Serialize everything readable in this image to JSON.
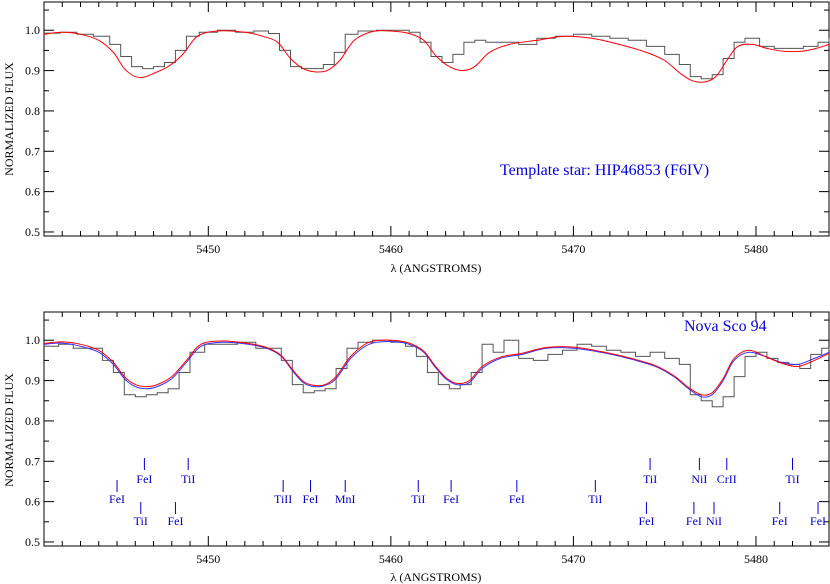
{
  "chart_data": [
    {
      "type": "line",
      "annotation": "Template star:  HIP46853 (F6IV)",
      "xlabel": "λ  (ANGSTROMS)",
      "ylabel": "NORMALIZED FLUX",
      "xlim": [
        5441,
        5484
      ],
      "ylim": [
        0.49,
        1.07
      ],
      "xticks": [
        5450,
        5460,
        5470,
        5480
      ],
      "yticks": [
        0.5,
        0.6,
        0.7,
        0.8,
        0.9,
        1.0
      ],
      "yticklabels": [
        "0.5",
        "0.6",
        "0.7",
        "0.8",
        "0.9",
        "1.0"
      ],
      "series": [
        {
          "style": "step",
          "color": "#555555",
          "x": [
            5441.0,
            5441.9,
            5442.8,
            5443.7,
            5444.6,
            5445.2,
            5445.8,
            5446.4,
            5447.0,
            5447.6,
            5448.2,
            5448.8,
            5449.5,
            5450.5,
            5451.5,
            5452.5,
            5453.3,
            5453.9,
            5454.5,
            5455.1,
            5455.7,
            5456.3,
            5456.9,
            5457.5,
            5458.2,
            5459.2,
            5460.2,
            5461.0,
            5461.6,
            5462.2,
            5462.8,
            5463.4,
            5464.0,
            5464.6,
            5465.2,
            5466.0,
            5467.0,
            5468.0,
            5469.0,
            5470.0,
            5471.0,
            5472.0,
            5473.0,
            5474.0,
            5475.0,
            5475.8,
            5476.4,
            5477.0,
            5477.6,
            5478.2,
            5478.8,
            5479.4,
            5480.2,
            5481.0,
            5481.8,
            5482.6,
            5483.4,
            5484.0
          ],
          "y": [
            0.993,
            0.995,
            0.99,
            0.985,
            0.965,
            0.935,
            0.91,
            0.905,
            0.91,
            0.92,
            0.95,
            0.985,
            0.995,
            1.0,
            0.995,
            0.998,
            0.992,
            0.95,
            0.91,
            0.905,
            0.905,
            0.915,
            0.945,
            0.99,
            0.998,
            1.0,
            1.0,
            0.995,
            0.97,
            0.935,
            0.92,
            0.94,
            0.97,
            0.975,
            0.97,
            0.97,
            0.965,
            0.98,
            0.985,
            0.99,
            0.985,
            0.98,
            0.975,
            0.96,
            0.94,
            0.915,
            0.885,
            0.88,
            0.89,
            0.93,
            0.97,
            0.98,
            0.96,
            0.955,
            0.955,
            0.96,
            0.97,
            0.98
          ]
        },
        {
          "style": "smooth",
          "color": "#ff0000",
          "x": [
            5441.0,
            5442.0,
            5443.0,
            5444.0,
            5444.8,
            5445.4,
            5446.0,
            5446.5,
            5447.0,
            5447.8,
            5448.6,
            5449.4,
            5450.5,
            5452.0,
            5453.0,
            5453.8,
            5454.5,
            5455.2,
            5455.8,
            5456.5,
            5457.2,
            5458.0,
            5459.0,
            5460.0,
            5461.0,
            5461.8,
            5462.5,
            5463.2,
            5463.9,
            5464.6,
            5465.4,
            5466.5,
            5468.0,
            5469.5,
            5471.0,
            5472.5,
            5474.0,
            5475.0,
            5475.8,
            5476.5,
            5477.2,
            5477.8,
            5478.4,
            5479.0,
            5479.8,
            5480.6,
            5481.5,
            5482.5,
            5483.3,
            5484.0
          ],
          "y": [
            0.99,
            0.995,
            0.99,
            0.975,
            0.945,
            0.905,
            0.885,
            0.884,
            0.893,
            0.91,
            0.94,
            0.985,
            0.998,
            0.995,
            0.985,
            0.97,
            0.93,
            0.905,
            0.897,
            0.9,
            0.925,
            0.975,
            0.997,
            0.998,
            0.992,
            0.975,
            0.935,
            0.91,
            0.9,
            0.91,
            0.945,
            0.965,
            0.975,
            0.985,
            0.98,
            0.965,
            0.945,
            0.925,
            0.895,
            0.875,
            0.872,
            0.885,
            0.925,
            0.96,
            0.965,
            0.955,
            0.948,
            0.948,
            0.955,
            0.965
          ]
        }
      ]
    },
    {
      "type": "line",
      "annotation": "Nova Sco 94",
      "xlabel": "λ  (ANGSTROMS)",
      "ylabel": "NORMALIZED FLUX",
      "xlim": [
        5441,
        5484
      ],
      "ylim": [
        0.49,
        1.07
      ],
      "xticks": [
        5450,
        5460,
        5470,
        5480
      ],
      "yticks": [
        0.5,
        0.6,
        0.7,
        0.8,
        0.9,
        1.0
      ],
      "yticklabels": [
        "0.5",
        "0.6",
        "0.7",
        "0.8",
        "0.9",
        "1.0"
      ],
      "series": [
        {
          "style": "step",
          "color": "#555555",
          "x": [
            5441.0,
            5441.8,
            5442.6,
            5443.4,
            5444.2,
            5444.8,
            5445.4,
            5446.0,
            5446.6,
            5447.2,
            5447.8,
            5448.4,
            5449.0,
            5449.8,
            5450.6,
            5451.6,
            5452.6,
            5453.4,
            5454.0,
            5454.6,
            5455.2,
            5455.8,
            5456.4,
            5457.0,
            5457.6,
            5458.2,
            5459.0,
            5460.0,
            5460.8,
            5461.4,
            5462.0,
            5462.6,
            5463.2,
            5463.8,
            5464.4,
            5465.0,
            5465.6,
            5466.2,
            5467.0,
            5467.8,
            5468.6,
            5469.4,
            5470.2,
            5471.0,
            5471.8,
            5472.6,
            5473.4,
            5474.2,
            5475.0,
            5475.8,
            5476.4,
            5477.0,
            5477.6,
            5478.2,
            5478.8,
            5479.4,
            5480.0,
            5480.6,
            5481.2,
            5481.8,
            5482.4,
            5483.0,
            5483.6,
            5484.0
          ],
          "y": [
            0.985,
            0.99,
            0.98,
            0.98,
            0.95,
            0.92,
            0.865,
            0.86,
            0.865,
            0.87,
            0.88,
            0.92,
            0.97,
            0.99,
            0.99,
            0.995,
            0.98,
            0.98,
            0.95,
            0.89,
            0.87,
            0.875,
            0.88,
            0.93,
            0.98,
            0.995,
            1.0,
            0.995,
            0.985,
            0.96,
            0.92,
            0.89,
            0.88,
            0.89,
            0.92,
            0.99,
            0.97,
            1.0,
            0.955,
            0.95,
            0.965,
            0.975,
            0.99,
            0.985,
            0.975,
            0.97,
            0.96,
            0.97,
            0.955,
            0.94,
            0.865,
            0.85,
            0.835,
            0.86,
            0.91,
            0.96,
            0.97,
            0.955,
            0.945,
            0.94,
            0.93,
            0.965,
            0.98,
            0.975
          ]
        },
        {
          "style": "smooth",
          "color": "#3333ff",
          "x": [
            5441.0,
            5442.0,
            5443.0,
            5444.0,
            5444.8,
            5445.4,
            5446.0,
            5446.6,
            5447.2,
            5448.0,
            5448.8,
            5449.6,
            5450.8,
            5452.2,
            5453.2,
            5454.0,
            5454.6,
            5455.2,
            5455.8,
            5456.4,
            5457.0,
            5457.8,
            5458.8,
            5460.0,
            5461.0,
            5461.8,
            5462.4,
            5463.0,
            5463.6,
            5464.3,
            5465.0,
            5466.0,
            5467.2,
            5468.5,
            5470.0,
            5471.5,
            5473.0,
            5474.5,
            5475.5,
            5476.3,
            5477.0,
            5477.6,
            5478.2,
            5478.8,
            5479.6,
            5480.5,
            5481.4,
            5482.3,
            5483.2,
            5484.0
          ],
          "y": [
            0.99,
            0.993,
            0.985,
            0.97,
            0.94,
            0.905,
            0.885,
            0.88,
            0.885,
            0.905,
            0.945,
            0.985,
            0.995,
            0.99,
            0.98,
            0.96,
            0.925,
            0.895,
            0.885,
            0.888,
            0.905,
            0.955,
            0.99,
            0.997,
            0.99,
            0.97,
            0.935,
            0.905,
            0.89,
            0.895,
            0.93,
            0.955,
            0.965,
            0.98,
            0.98,
            0.97,
            0.955,
            0.935,
            0.91,
            0.88,
            0.86,
            0.865,
            0.9,
            0.95,
            0.97,
            0.96,
            0.945,
            0.94,
            0.955,
            0.97
          ]
        },
        {
          "style": "smooth",
          "color": "#ff0000",
          "x": [
            5441.0,
            5442.0,
            5443.0,
            5444.0,
            5444.8,
            5445.4,
            5446.0,
            5446.6,
            5447.2,
            5448.0,
            5448.8,
            5449.6,
            5450.8,
            5452.2,
            5453.2,
            5454.0,
            5454.6,
            5455.2,
            5455.8,
            5456.4,
            5457.0,
            5457.8,
            5458.8,
            5460.0,
            5461.0,
            5461.8,
            5462.4,
            5463.0,
            5463.6,
            5464.3,
            5465.0,
            5466.0,
            5467.2,
            5468.5,
            5470.0,
            5471.5,
            5473.0,
            5474.5,
            5475.5,
            5476.3,
            5477.0,
            5477.6,
            5478.2,
            5478.8,
            5479.6,
            5480.5,
            5481.4,
            5482.3,
            5483.2,
            5484.0
          ],
          "y": [
            0.992,
            0.996,
            0.99,
            0.975,
            0.945,
            0.91,
            0.89,
            0.885,
            0.89,
            0.91,
            0.95,
            0.99,
            0.998,
            0.992,
            0.982,
            0.962,
            0.928,
            0.898,
            0.888,
            0.89,
            0.91,
            0.96,
            0.995,
            1.0,
            0.993,
            0.973,
            0.938,
            0.908,
            0.893,
            0.9,
            0.935,
            0.958,
            0.968,
            0.982,
            0.983,
            0.972,
            0.957,
            0.937,
            0.912,
            0.883,
            0.865,
            0.87,
            0.905,
            0.955,
            0.975,
            0.96,
            0.943,
            0.935,
            0.95,
            0.968
          ]
        }
      ],
      "line_ids": [
        {
          "label": "FeI",
          "x": 5445.0,
          "row": "mid"
        },
        {
          "label": "FeI",
          "x": 5446.5,
          "row": "high"
        },
        {
          "label": "TiI",
          "x": 5446.3,
          "row": "low"
        },
        {
          "label": "FeI",
          "x": 5448.2,
          "row": "low"
        },
        {
          "label": "TiI",
          "x": 5448.9,
          "row": "high"
        },
        {
          "label": "TiII",
          "x": 5454.1,
          "row": "mid"
        },
        {
          "label": "FeI",
          "x": 5455.6,
          "row": "mid"
        },
        {
          "label": "MnI",
          "x": 5457.5,
          "row": "mid"
        },
        {
          "label": "TiI",
          "x": 5461.5,
          "row": "mid"
        },
        {
          "label": "FeI",
          "x": 5463.3,
          "row": "mid"
        },
        {
          "label": "FeI",
          "x": 5466.9,
          "row": "mid"
        },
        {
          "label": "TiI",
          "x": 5471.2,
          "row": "mid"
        },
        {
          "label": "TiI",
          "x": 5474.2,
          "row": "high"
        },
        {
          "label": "FeI",
          "x": 5474.0,
          "row": "low"
        },
        {
          "label": "FeI",
          "x": 5476.6,
          "row": "low"
        },
        {
          "label": "NiI",
          "x": 5476.9,
          "row": "high"
        },
        {
          "label": "NiI",
          "x": 5477.7,
          "row": "low"
        },
        {
          "label": "CrII",
          "x": 5478.4,
          "row": "high"
        },
        {
          "label": "FeI",
          "x": 5481.3,
          "row": "low"
        },
        {
          "label": "TiI",
          "x": 5482.0,
          "row": "high"
        },
        {
          "label": "FeI",
          "x": 5483.4,
          "row": "low"
        }
      ]
    }
  ]
}
